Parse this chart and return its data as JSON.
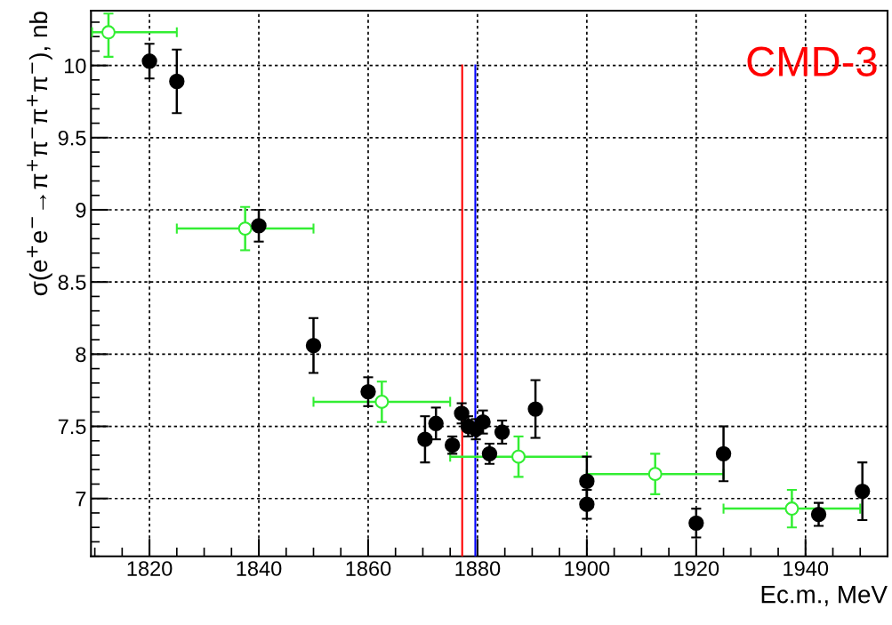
{
  "chart_data": {
    "type": "scatter",
    "xlabel": "Ec.m., MeV",
    "ylabel": "σ(e$^{+}$e$^{−}$→π$^{+}$π$^{−}$π$^{+}$π$^{−}$), nb",
    "annotations": [
      "CMD-3"
    ],
    "xlim": [
      1809.3,
      1955
    ],
    "ylim": [
      6.6,
      10.38
    ],
    "xticks": [
      1820,
      1840,
      1860,
      1880,
      1900,
      1920,
      1940
    ],
    "yticks": [
      7,
      7.5,
      8,
      8.5,
      9,
      9.5,
      10
    ],
    "grid": true,
    "marker": "circle",
    "series": [
      {
        "color": "#000000",
        "x": [
          1820,
          1825,
          1840,
          1850,
          1860,
          1870.4,
          1872.4,
          1875.4,
          1877.1,
          1878.3,
          1879.7,
          1881,
          1882.2,
          1884.5,
          1890.6,
          1900,
          1900,
          1920,
          1925,
          1942.4,
          1950.4
        ],
        "values": [
          10.03,
          9.89,
          8.89,
          8.06,
          7.74,
          7.41,
          7.52,
          7.37,
          7.59,
          7.5,
          7.48,
          7.53,
          7.31,
          7.46,
          7.62,
          7.12,
          6.96,
          6.83,
          7.31,
          6.89,
          7.05
        ],
        "errors": [
          0.12,
          0.22,
          0.11,
          0.19,
          0.1,
          0.16,
          0.11,
          0.06,
          0.07,
          0.07,
          0.07,
          0.08,
          0.07,
          0.08,
          0.2,
          0.17,
          0.1,
          0.1,
          0.19,
          0.08,
          0.2
        ]
      },
      {
        "color": "#33ee33",
        "x": [
          1812.5,
          1837.5,
          1862.5,
          1887.5,
          1912.5,
          1937.5
        ],
        "values": [
          10.23,
          8.87,
          7.67,
          7.29,
          7.17,
          6.93
        ],
        "errors": [
          [
            10.06,
            10.36
          ],
          0.15,
          0.14,
          0.14,
          0.14,
          0.13
        ],
        "xerrors": [
          [
            1809.5,
            1825
          ],
          12.5,
          12.5,
          12.5,
          12.5,
          12.5
        ]
      },
      {
        "type": "line",
        "color": "#ff0000",
        "marker": "none",
        "x": [
          1877.2,
          1877.2
        ],
        "values": [
          6.6,
          10
        ]
      },
      {
        "type": "line",
        "color": "#0000ff",
        "marker": "none",
        "x": [
          1879.6,
          1879.6
        ],
        "values": [
          6.6,
          10
        ]
      }
    ]
  }
}
